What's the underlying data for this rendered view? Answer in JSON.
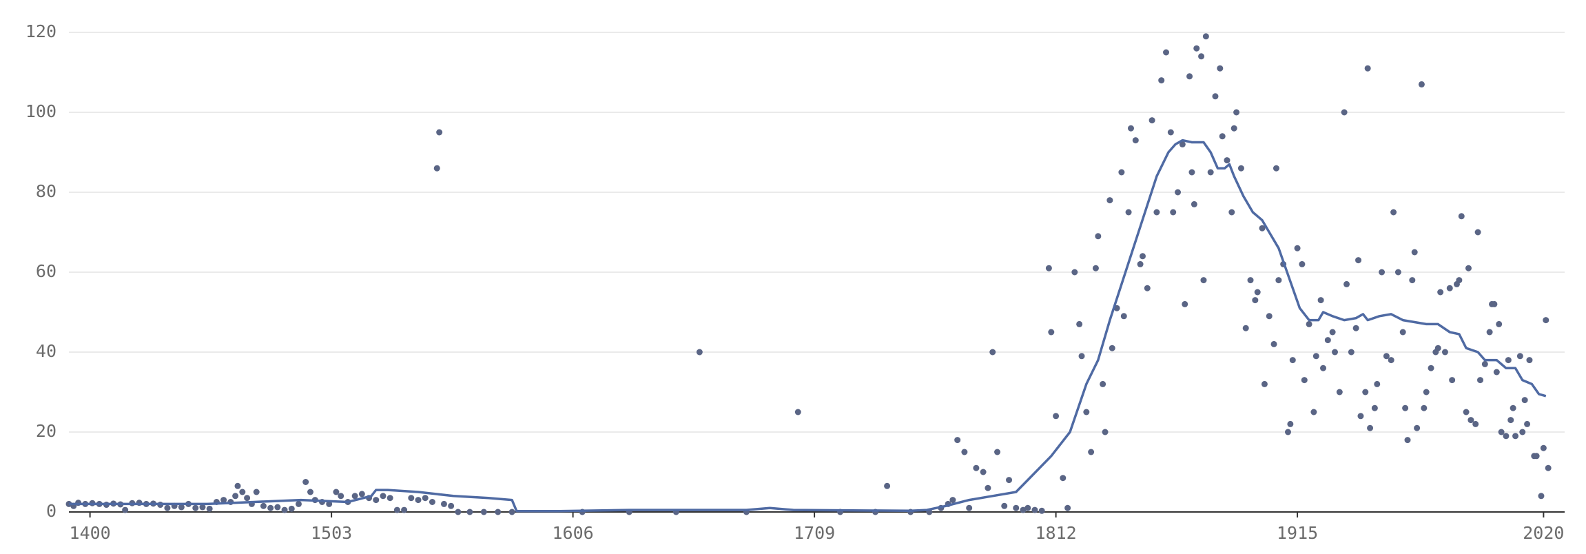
{
  "chart_data": {
    "type": "scatter",
    "xlim": [
      1391,
      2029
    ],
    "ylim": [
      0,
      120
    ],
    "xticks": [
      1400,
      1503,
      1606,
      1709,
      1812,
      1915,
      2020
    ],
    "yticks": [
      0,
      20,
      40,
      60,
      80,
      100,
      120
    ],
    "grid": true,
    "series": [
      {
        "type": "scatter",
        "color": "#5a6585",
        "x": [
          1391,
          1393,
          1395,
          1398,
          1401,
          1404,
          1407,
          1410,
          1413,
          1415,
          1418,
          1421,
          1424,
          1427,
          1430,
          1433,
          1436,
          1439,
          1442,
          1445,
          1448,
          1451,
          1454,
          1457,
          1460,
          1462,
          1463,
          1465,
          1467,
          1469,
          1471,
          1474,
          1477,
          1480,
          1483,
          1486,
          1489,
          1492,
          1494,
          1496,
          1499,
          1502,
          1505,
          1507,
          1510,
          1513,
          1516,
          1519,
          1522,
          1525,
          1528,
          1531,
          1534,
          1537,
          1540,
          1543,
          1546,
          1548,
          1549,
          1551,
          1554,
          1557,
          1562,
          1568,
          1574,
          1580,
          1610,
          1630,
          1650,
          1660,
          1680,
          1702,
          1720,
          1735,
          1740,
          1750,
          1758,
          1763,
          1766,
          1768,
          1770,
          1773,
          1775,
          1778,
          1781,
          1783,
          1785,
          1787,
          1790,
          1792,
          1795,
          1798,
          1800,
          1803,
          1806,
          1809,
          1810,
          1812,
          1815,
          1817,
          1820,
          1822,
          1823,
          1825,
          1827,
          1829,
          1830,
          1832,
          1833,
          1835,
          1836,
          1838,
          1840,
          1841,
          1843,
          1844,
          1846,
          1848,
          1849,
          1851,
          1853,
          1855,
          1857,
          1859,
          1861,
          1862,
          1864,
          1866,
          1867,
          1869,
          1870,
          1871,
          1872,
          1874,
          1875,
          1876,
          1878,
          1880,
          1882,
          1883,
          1885,
          1887,
          1888,
          1889,
          1891,
          1893,
          1895,
          1897,
          1898,
          1900,
          1901,
          1903,
          1905,
          1906,
          1907,
          1909,
          1911,
          1912,
          1913,
          1915,
          1917,
          1918,
          1920,
          1922,
          1923,
          1925,
          1926,
          1928,
          1930,
          1931,
          1933,
          1935,
          1936,
          1938,
          1940,
          1941,
          1942,
          1944,
          1945,
          1946,
          1948,
          1949,
          1951,
          1953,
          1955,
          1956,
          1958,
          1960,
          1961,
          1962,
          1964,
          1965,
          1966,
          1968,
          1969,
          1970,
          1972,
          1974,
          1975,
          1976,
          1978,
          1980,
          1981,
          1983,
          1984,
          1985,
          1987,
          1988,
          1989,
          1991,
          1992,
          1993,
          1995,
          1997,
          1998,
          1999,
          2000,
          2001,
          2002,
          2004,
          2005,
          2006,
          2007,
          2008,
          2010,
          2011,
          2012,
          2013,
          2014,
          2016,
          2017,
          2019,
          2020,
          2021,
          2022
        ],
        "values": [
          2,
          1.5,
          2.3,
          2,
          2.2,
          2,
          1.8,
          2.1,
          1.9,
          0.5,
          2.2,
          2.3,
          2,
          2.1,
          1.8,
          1,
          1.5,
          1.2,
          2,
          1,
          1.2,
          0.8,
          2.5,
          3,
          2.5,
          4,
          6.5,
          5,
          3.5,
          2,
          5,
          1.5,
          1,
          1.2,
          0.5,
          0.8,
          2,
          7.5,
          5,
          3,
          2.5,
          2,
          5,
          4,
          2.5,
          4,
          4.5,
          3.5,
          3,
          4,
          3.5,
          0.5,
          0.5,
          3.5,
          3,
          3.5,
          2.5,
          86,
          95,
          2,
          1.5,
          0,
          0,
          0,
          0,
          0,
          0,
          0,
          0,
          40,
          0,
          25,
          0,
          0,
          6.5,
          0,
          0,
          1,
          2,
          3,
          18,
          15,
          1,
          11,
          10,
          6,
          40,
          15,
          1.5,
          8,
          1,
          0.5,
          1,
          0.5,
          0.3,
          61,
          45,
          24,
          8.5,
          1,
          60,
          47,
          39,
          25,
          15,
          61,
          69,
          32,
          20,
          78,
          41,
          51,
          85,
          49,
          75,
          96,
          93,
          62,
          64,
          56,
          98,
          75,
          108,
          115,
          95,
          75,
          80,
          92,
          52,
          109,
          85,
          77,
          116,
          114,
          58,
          119,
          85,
          104,
          111,
          94,
          88,
          75,
          96,
          100,
          86,
          46,
          58,
          53,
          55,
          71,
          32,
          49,
          42,
          86,
          58,
          62,
          20,
          22,
          38,
          66,
          62,
          33,
          47,
          25,
          39,
          53,
          36,
          43,
          45,
          40,
          30,
          100,
          57,
          40,
          46,
          63,
          24,
          30,
          111,
          21,
          26,
          32,
          60,
          39,
          38,
          75,
          60,
          45,
          26,
          18,
          58,
          65,
          21,
          107,
          26,
          30,
          36,
          40,
          41,
          55,
          40,
          56,
          33,
          57,
          58,
          74,
          25,
          61,
          23,
          22,
          70,
          33,
          37,
          45,
          52,
          52,
          35,
          47,
          20,
          19,
          38,
          23,
          26,
          19,
          39,
          20,
          28,
          22,
          38,
          14,
          14,
          4,
          16,
          48,
          11
        ]
      },
      {
        "type": "line",
        "color": "#4f6aa3",
        "x": [
          1391,
          1420,
          1450,
          1470,
          1490,
          1510,
          1520,
          1522,
          1527,
          1540,
          1555,
          1570,
          1580,
          1582,
          1600,
          1630,
          1680,
          1690,
          1700,
          1750,
          1757,
          1765,
          1775,
          1785,
          1795,
          1800,
          1810,
          1818,
          1825,
          1830,
          1835,
          1840,
          1845,
          1850,
          1855,
          1860,
          1863,
          1866,
          1870,
          1875,
          1878,
          1881,
          1884,
          1886,
          1888,
          1892,
          1896,
          1900,
          1903,
          1907,
          1910,
          1913,
          1916,
          1920,
          1924,
          1926,
          1930,
          1935,
          1940,
          1943,
          1945,
          1950,
          1955,
          1960,
          1965,
          1970,
          1975,
          1980,
          1984,
          1987,
          1992,
          1995,
          2000,
          2004,
          2008,
          2011,
          2015,
          2018,
          2021
        ],
        "values": [
          2,
          2,
          2,
          2.5,
          3,
          2.5,
          4,
          5.5,
          5.5,
          5,
          4,
          3.5,
          3,
          0.2,
          0.2,
          0.5,
          0.5,
          1,
          0.5,
          0.3,
          0.5,
          1.5,
          3,
          4,
          5,
          8,
          14,
          20,
          32,
          38,
          48,
          57,
          66,
          75,
          84,
          90,
          92,
          93,
          92.5,
          92.5,
          90,
          86,
          86,
          87,
          84,
          79,
          75,
          73,
          70,
          66,
          61,
          56,
          51,
          48,
          48,
          50,
          49,
          48,
          48.5,
          49.5,
          48,
          49,
          49.5,
          48,
          47.5,
          47,
          47,
          45,
          44.5,
          41,
          40,
          38,
          38,
          36,
          36,
          33,
          32,
          29.5,
          29
        ]
      }
    ]
  }
}
